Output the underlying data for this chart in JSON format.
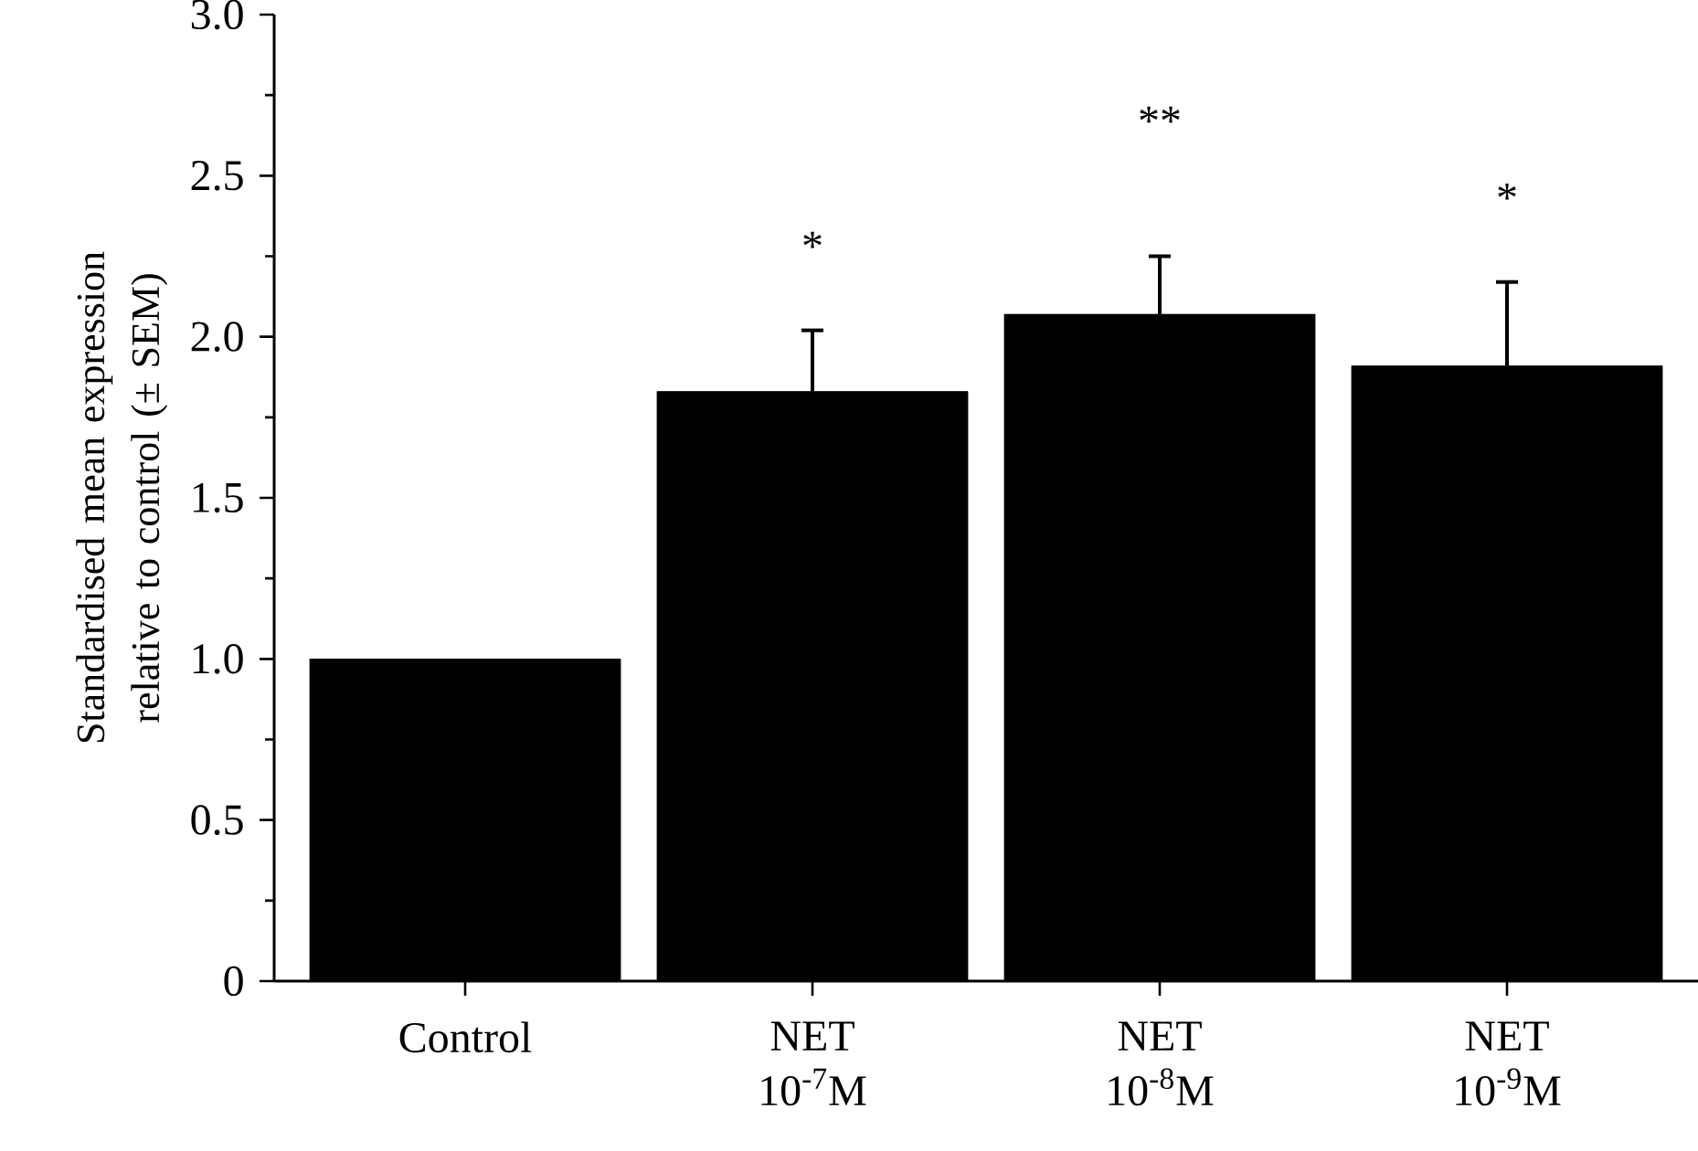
{
  "chart_data": {
    "type": "bar",
    "ylabel": "Standardised mean expression relative to control (± SEM)",
    "categories": [
      "Control",
      "NET 10$^{-7}$M",
      "NET 10$^{-8}$M",
      "NET 10$^{-9}$M"
    ],
    "values": [
      1.0,
      1.83,
      2.07,
      1.91
    ],
    "errors": [
      null,
      [
        1.83,
        2.02
      ],
      [
        2.07,
        2.25
      ],
      [
        1.91,
        2.17
      ]
    ],
    "color": "#000000",
    "ylim": [
      0,
      3.0
    ],
    "yticks": [
      0,
      {
        "value": 0.5,
        "label": "0.5"
      },
      {
        "value": 1,
        "label": "1.0"
      },
      {
        "value": 1.5,
        "label": "1.5"
      },
      {
        "value": 2,
        "label": "2.0"
      },
      {
        "value": 2.5,
        "label": "2.5"
      },
      {
        "value": 3,
        "label": "3.0"
      }
    ],
    "annotations": [
      "*",
      "**",
      "*"
    ],
    "grid": false
  }
}
